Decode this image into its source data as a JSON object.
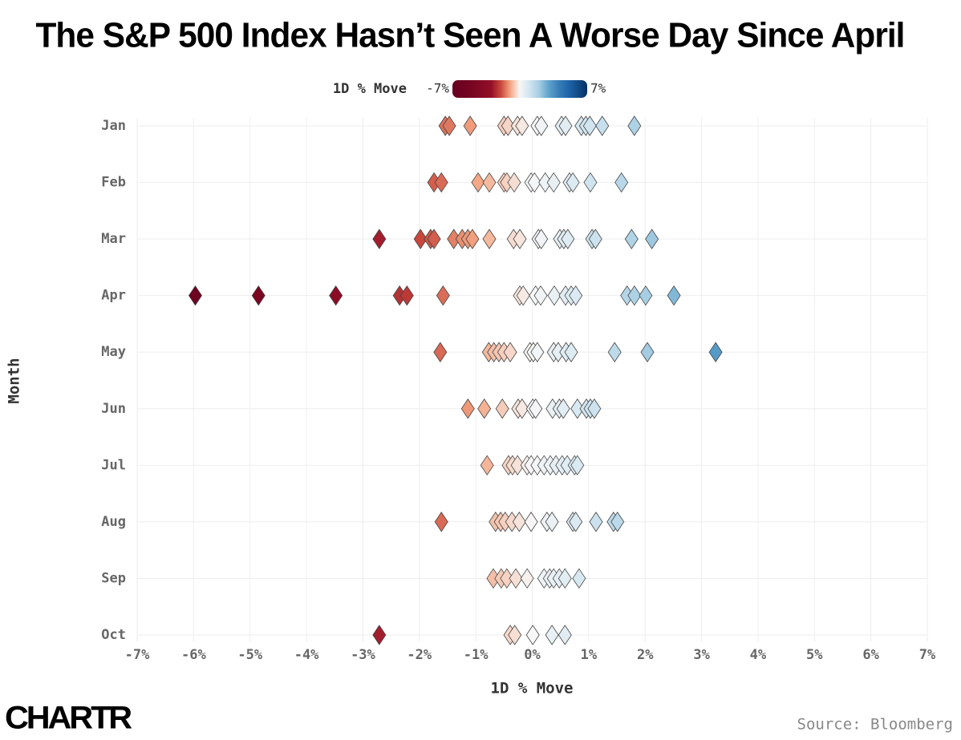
{
  "chart_data": {
    "type": "strip",
    "title": "The S&P 500 Index Hasn’t Seen A Worse Day Since April",
    "xlabel": "1D % Move",
    "ylabel": "Month",
    "source": "Source: Bloomberg",
    "logo": "CHARTR",
    "categories": [
      "Jan",
      "Feb",
      "Mar",
      "Apr",
      "May",
      "Jun",
      "Jul",
      "Aug",
      "Sep",
      "Oct"
    ],
    "values": [
      [
        -1.54,
        -1.47,
        -1.1,
        -0.5,
        -0.43,
        -0.26,
        -0.18,
        0.09,
        0.16,
        0.52,
        0.59,
        0.87,
        0.95,
        1.02,
        1.24,
        1.81
      ],
      [
        -1.74,
        -1.61,
        -0.96,
        -0.76,
        -0.5,
        -0.45,
        -0.32,
        -0.02,
        0.04,
        0.23,
        0.38,
        0.66,
        0.72,
        1.03,
        1.58
      ],
      [
        -2.71,
        -1.98,
        -1.8,
        -1.74,
        -1.39,
        -1.24,
        -1.14,
        -1.06,
        -0.76,
        -0.33,
        -0.22,
        0.11,
        0.16,
        0.49,
        0.56,
        0.63,
        1.06,
        1.12,
        1.76,
        2.12
      ],
      [
        -5.97,
        -4.85,
        -3.48,
        -2.35,
        -2.22,
        -1.58,
        -0.22,
        -0.16,
        0.06,
        0.15,
        0.39,
        0.59,
        0.69,
        0.77,
        1.68,
        1.81,
        2.01,
        2.51
      ],
      [
        -1.63,
        -0.77,
        -0.68,
        -0.59,
        -0.5,
        -0.39,
        -0.04,
        0.02,
        0.09,
        0.38,
        0.46,
        0.6,
        0.69,
        1.46,
        2.04,
        3.25
      ],
      [
        -1.14,
        -0.85,
        -0.53,
        -0.25,
        -0.18,
        0.01,
        0.06,
        0.36,
        0.48,
        0.55,
        0.8,
        0.96,
        1.03,
        1.1
      ],
      [
        -0.8,
        -0.42,
        -0.35,
        -0.26,
        -0.09,
        -0.02,
        0.09,
        0.21,
        0.32,
        0.42,
        0.53,
        0.62,
        0.75,
        0.8
      ],
      [
        -1.61,
        -0.65,
        -0.56,
        -0.48,
        -0.36,
        -0.23,
        -0.02,
        0.26,
        0.35,
        0.72,
        0.77,
        1.13,
        1.44,
        1.51
      ],
      [
        -0.69,
        -0.55,
        -0.45,
        -0.29,
        -0.09,
        0.21,
        0.31,
        0.38,
        0.48,
        0.58,
        0.83
      ],
      [
        -2.71,
        -0.39,
        -0.31,
        0.01,
        0.35,
        0.58
      ]
    ],
    "xlim": [
      -7,
      7
    ],
    "xticks": [
      {
        "value": -7,
        "label": "-7%"
      },
      {
        "value": -6,
        "label": "-6%"
      },
      {
        "value": -5,
        "label": "-5%"
      },
      {
        "value": -4,
        "label": "-4%"
      },
      {
        "value": -3,
        "label": "-3%"
      },
      {
        "value": -2,
        "label": "-2%"
      },
      {
        "value": -1,
        "label": "-1%"
      },
      {
        "value": 0,
        "label": "0%"
      },
      {
        "value": 1,
        "label": "1%"
      },
      {
        "value": 2,
        "label": "2%"
      },
      {
        "value": 3,
        "label": "3%"
      },
      {
        "value": 4,
        "label": "4%"
      },
      {
        "value": 5,
        "label": "5%"
      },
      {
        "value": 6,
        "label": "6%"
      },
      {
        "value": 7,
        "label": "7%"
      }
    ],
    "grid": true,
    "colorbar": {
      "title": "1D % Move",
      "ticks": [
        {
          "value": -7,
          "label": "-7%"
        },
        {
          "value": 7,
          "label": "7%"
        }
      ],
      "colors": [
        "#67001f",
        "#6e0220",
        "#780522",
        "#850a24",
        "#930e26",
        "#c8453a",
        "#f4a582",
        "#f7f7f7",
        "#d1e5f0",
        "#a6cde3",
        "#5fa3cc",
        "#3a7fb8",
        "#2166ac",
        "#124d8a",
        "#053061"
      ]
    },
    "marker_edge_color": "#444444"
  }
}
